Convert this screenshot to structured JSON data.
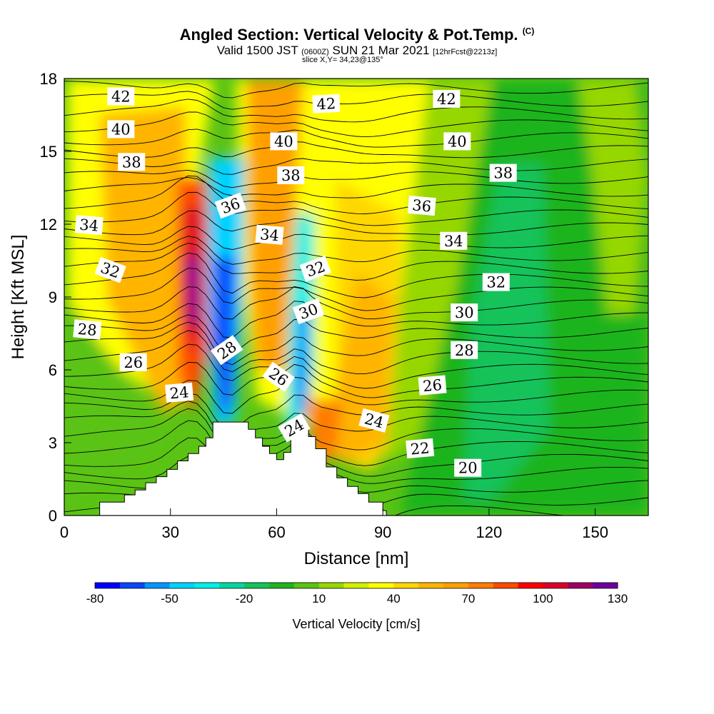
{
  "title": {
    "main": "Angled Section: Vertical Velocity & Pot.Temp.",
    "main_suffix": "(C)",
    "valid_prefix": "Valid 1500 JST",
    "valid_utc": "(0600Z)",
    "valid_date": "SUN 21 Mar 2021",
    "forecast": "[12hrFcst@2213z]",
    "slice": "slice X,Y= 34,23@135°"
  },
  "chart_data": {
    "type": "heatmap",
    "xlabel": "Distance [nm]",
    "ylabel": "Height [Kft MSL]",
    "xlim": [
      0,
      165
    ],
    "ylim": [
      0,
      18
    ],
    "x_ticks": [
      0,
      30,
      60,
      90,
      120,
      150
    ],
    "y_ticks": [
      0,
      3,
      6,
      9,
      12,
      15,
      18
    ],
    "x_tick_labels": [
      "0",
      "30",
      "60",
      "90",
      "120",
      "150"
    ],
    "y_tick_labels": [
      "0",
      "3",
      "6",
      "9",
      "12",
      "15",
      "18"
    ],
    "fill_variable": "Vertical Velocity [cm/s]",
    "colorbar": {
      "title": "Vertical Velocity [cm/s]",
      "min": -80,
      "max": 130,
      "step": 10,
      "tick_values": [
        -80,
        -50,
        -20,
        10,
        40,
        70,
        100,
        130
      ],
      "tick_labels": [
        "-80",
        "-50",
        "-20",
        "10",
        "40",
        "70",
        "100",
        "130"
      ],
      "colors": [
        "#0000ff",
        "#0a46ff",
        "#0096ff",
        "#00d2ff",
        "#00f0e6",
        "#00d7a0",
        "#14c35a",
        "#1eb41e",
        "#5ac314",
        "#96d700",
        "#d2f000",
        "#ffff00",
        "#ffd700",
        "#ffb400",
        "#ffa000",
        "#ff7d00",
        "#ff4b00",
        "#ff0000",
        "#dc0028",
        "#a00064",
        "#6e00a0"
      ]
    },
    "theta_contour_labels": [
      {
        "text": "42",
        "x": 16,
        "y": 17.25,
        "angle": 0
      },
      {
        "text": "42",
        "x": 74,
        "y": 16.95,
        "angle": -3
      },
      {
        "text": "42",
        "x": 108,
        "y": 17.15,
        "angle": 0
      },
      {
        "text": "40",
        "x": 16,
        "y": 15.9,
        "angle": 0
      },
      {
        "text": "40",
        "x": 62,
        "y": 15.4,
        "angle": 0
      },
      {
        "text": "40",
        "x": 111,
        "y": 15.4,
        "angle": 0
      },
      {
        "text": "38",
        "x": 19,
        "y": 14.55,
        "angle": 0
      },
      {
        "text": "38",
        "x": 64,
        "y": 14.0,
        "angle": 0
      },
      {
        "text": "38",
        "x": 124,
        "y": 14.1,
        "angle": 0
      },
      {
        "text": "36",
        "x": 47,
        "y": 12.75,
        "angle": -20
      },
      {
        "text": "36",
        "x": 101,
        "y": 12.75,
        "angle": 5
      },
      {
        "text": "34",
        "x": 7,
        "y": 11.95,
        "angle": 5
      },
      {
        "text": "34",
        "x": 58,
        "y": 11.55,
        "angle": 5
      },
      {
        "text": "34",
        "x": 110,
        "y": 11.3,
        "angle": 0
      },
      {
        "text": "32",
        "x": 13,
        "y": 10.1,
        "angle": 20
      },
      {
        "text": "32",
        "x": 71,
        "y": 10.15,
        "angle": -20
      },
      {
        "text": "32",
        "x": 122,
        "y": 9.6,
        "angle": 0
      },
      {
        "text": "30",
        "x": 69,
        "y": 8.4,
        "angle": -20
      },
      {
        "text": "30",
        "x": 113,
        "y": 8.35,
        "angle": 0
      },
      {
        "text": "28",
        "x": 6.5,
        "y": 7.65,
        "angle": 5
      },
      {
        "text": "28",
        "x": 46,
        "y": 6.8,
        "angle": -35
      },
      {
        "text": "28",
        "x": 113,
        "y": 6.8,
        "angle": 0
      },
      {
        "text": "26",
        "x": 19.5,
        "y": 6.3,
        "angle": 0
      },
      {
        "text": "26",
        "x": 60.5,
        "y": 5.7,
        "angle": 35
      },
      {
        "text": "26",
        "x": 104,
        "y": 5.35,
        "angle": -5
      },
      {
        "text": "24",
        "x": 32.5,
        "y": 5.05,
        "angle": -5
      },
      {
        "text": "24",
        "x": 65,
        "y": 3.6,
        "angle": -30
      },
      {
        "text": "24",
        "x": 87.5,
        "y": 3.9,
        "angle": 15
      },
      {
        "text": "22",
        "x": 100.5,
        "y": 2.75,
        "angle": -5
      },
      {
        "text": "20",
        "x": 114,
        "y": 1.95,
        "angle": 0
      }
    ],
    "terrain_profile": [
      [
        10,
        0.4
      ],
      [
        10,
        0.55
      ],
      [
        17,
        0.55
      ],
      [
        17,
        0.85
      ],
      [
        20,
        0.85
      ],
      [
        20,
        1.05
      ],
      [
        23,
        1.05
      ],
      [
        23,
        1.35
      ],
      [
        26,
        1.35
      ],
      [
        26,
        1.6
      ],
      [
        29,
        1.6
      ],
      [
        29,
        1.9
      ],
      [
        32,
        1.9
      ],
      [
        32,
        2.25
      ],
      [
        35,
        2.25
      ],
      [
        35,
        2.55
      ],
      [
        38,
        2.55
      ],
      [
        38,
        2.85
      ],
      [
        40,
        2.85
      ],
      [
        40,
        3.2
      ],
      [
        42,
        3.2
      ],
      [
        42,
        3.85
      ],
      [
        52,
        3.85
      ],
      [
        52,
        3.55
      ],
      [
        54,
        3.55
      ],
      [
        54,
        3.2
      ],
      [
        56,
        3.2
      ],
      [
        56,
        2.85
      ],
      [
        58,
        2.85
      ],
      [
        58,
        2.55
      ],
      [
        60,
        2.55
      ],
      [
        60,
        2.3
      ],
      [
        62,
        2.3
      ],
      [
        62,
        2.6
      ],
      [
        64,
        2.6
      ],
      [
        64,
        3.3
      ],
      [
        66,
        3.3
      ],
      [
        66,
        3.55
      ],
      [
        69,
        3.55
      ],
      [
        69,
        3.25
      ],
      [
        71,
        3.25
      ],
      [
        71,
        2.75
      ],
      [
        74,
        2.75
      ],
      [
        74,
        2.0
      ],
      [
        77,
        2.0
      ],
      [
        77,
        1.55
      ],
      [
        80,
        1.55
      ],
      [
        80,
        1.2
      ],
      [
        83,
        1.2
      ],
      [
        83,
        0.9
      ],
      [
        86,
        0.9
      ],
      [
        86,
        0.55
      ],
      [
        90,
        0.55
      ],
      [
        90,
        0.2
      ],
      [
        91,
        0.2
      ],
      [
        91,
        0
      ]
    ]
  }
}
